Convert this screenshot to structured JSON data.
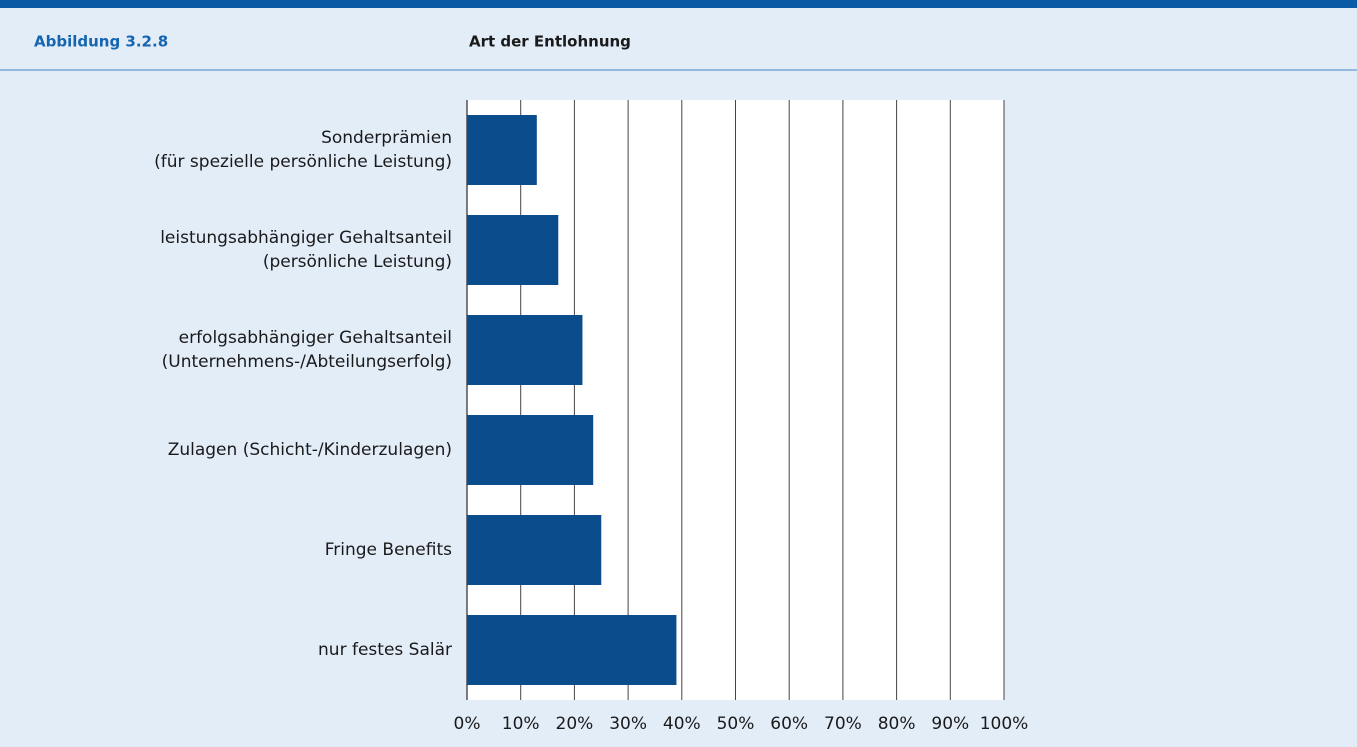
{
  "figure_label": "Abbildung 3.2.8",
  "chart_data": {
    "type": "bar",
    "orientation": "horizontal",
    "title": "Art der Entlohnung",
    "categories": [
      [
        "Sonderprämien",
        "(für spezielle persönliche Leistung)"
      ],
      [
        "leistungsabhängiger Gehaltsanteil",
        "(persönliche Leistung)"
      ],
      [
        "erfolgsabhängiger Gehaltsanteil",
        "(Unternehmens-/Abteilungserfolg)"
      ],
      [
        "Zulagen (Schicht-/Kinderzulagen)"
      ],
      [
        "Fringe Benefits"
      ],
      [
        "nur festes Salär"
      ]
    ],
    "values": [
      13,
      17,
      21.5,
      23.5,
      25,
      39
    ],
    "color": "#0b4d8c",
    "xlim": [
      0,
      100
    ],
    "xticks": [
      {
        "value": 0,
        "label": "0%"
      },
      {
        "value": 10,
        "label": "10%"
      },
      {
        "value": 20,
        "label": "20%"
      },
      {
        "value": 30,
        "label": "30%"
      },
      {
        "value": 40,
        "label": "40%"
      },
      {
        "value": 50,
        "label": "50%"
      },
      {
        "value": 60,
        "label": "60%"
      },
      {
        "value": 70,
        "label": "70%"
      },
      {
        "value": 80,
        "label": "80%"
      },
      {
        "value": 90,
        "label": "90%"
      },
      {
        "value": 100,
        "label": "100%"
      }
    ],
    "grid": true
  }
}
